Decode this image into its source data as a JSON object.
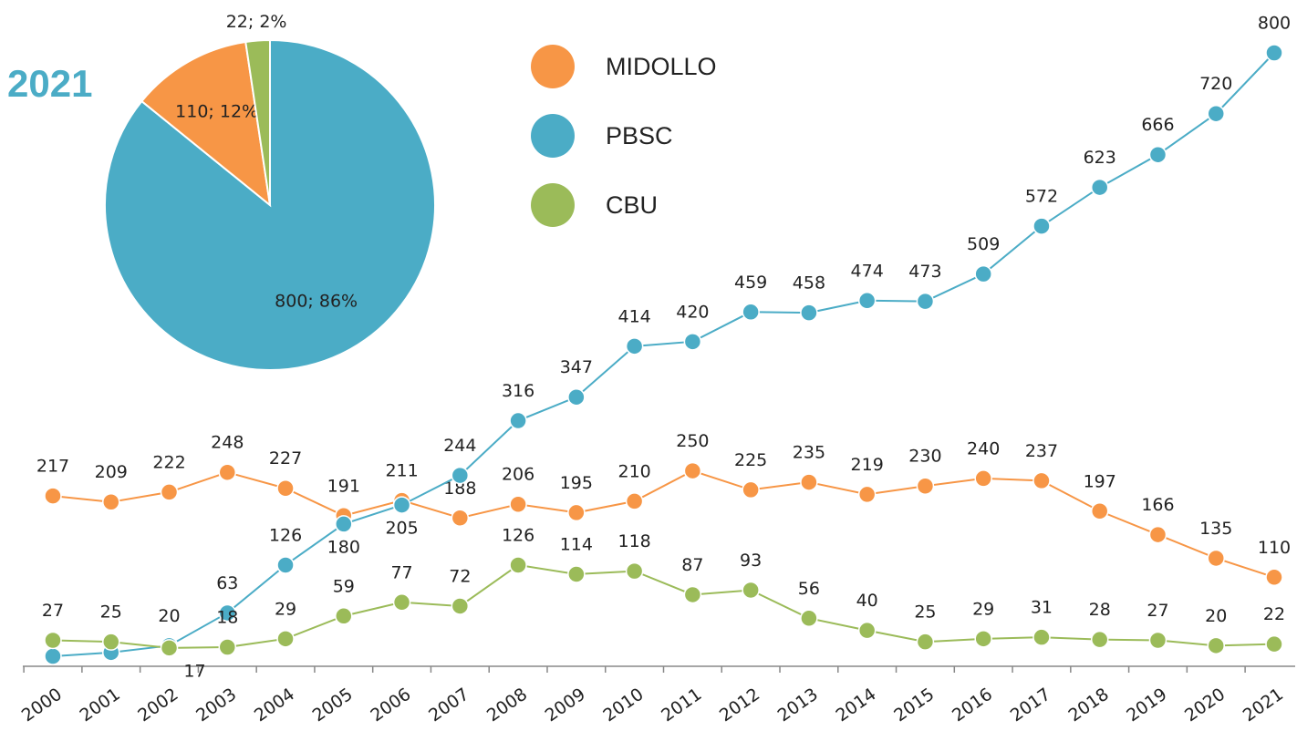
{
  "chart_data": [
    {
      "type": "line",
      "categories": [
        "2000",
        "2001",
        "2002",
        "2003",
        "2004",
        "2005",
        "2006",
        "2007",
        "2008",
        "2009",
        "2010",
        "2011",
        "2012",
        "2013",
        "2014",
        "2015",
        "2016",
        "2017",
        "2018",
        "2019",
        "2020",
        "2021"
      ],
      "ylim": [
        0,
        800
      ],
      "series": [
        {
          "name": "MIDOLLO",
          "color": "#f79646",
          "values": [
            217,
            209,
            222,
            248,
            227,
            191,
            211,
            188,
            206,
            195,
            210,
            250,
            225,
            235,
            219,
            230,
            240,
            237,
            197,
            166,
            135,
            110
          ]
        },
        {
          "name": "PBSC",
          "color": "#4bacc6",
          "values": [
            6,
            11,
            20,
            63,
            126,
            180,
            205,
            244,
            316,
            347,
            414,
            420,
            459,
            458,
            474,
            473,
            509,
            572,
            623,
            666,
            720,
            800
          ],
          "value_labels": [
            null,
            null,
            "20",
            "63",
            "126",
            "180",
            "205",
            "244",
            "316",
            "347",
            "414",
            "420",
            "459",
            "458",
            "474",
            "473",
            "509",
            "572",
            "623",
            "666",
            "720",
            "800"
          ]
        },
        {
          "name": "CBU",
          "color": "#9bbb59",
          "values": [
            27,
            25,
            17,
            18,
            29,
            59,
            77,
            72,
            126,
            114,
            118,
            87,
            93,
            56,
            40,
            25,
            29,
            31,
            28,
            27,
            20,
            22
          ]
        }
      ]
    },
    {
      "type": "pie",
      "title": "2021",
      "categories": [
        "PBSC",
        "MIDOLLO",
        "CBU"
      ],
      "colors": [
        "#4bacc6",
        "#f79646",
        "#9bbb59"
      ],
      "values": [
        800,
        110,
        22
      ],
      "value_labels": [
        "800; 86%",
        "110; 12%",
        "22; 2%"
      ]
    }
  ]
}
